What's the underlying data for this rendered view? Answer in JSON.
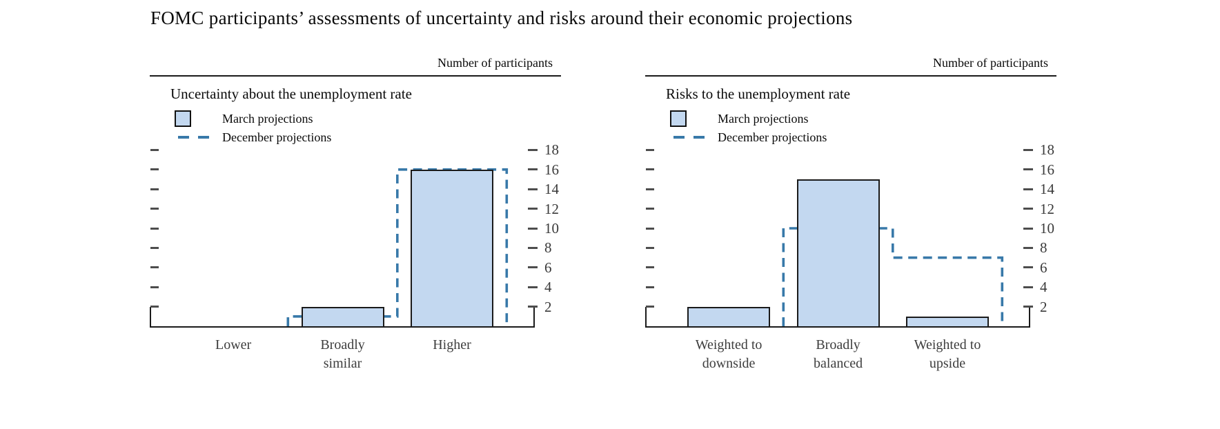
{
  "page_title": "FOMC participants’ assessments of uncertainty and risks around their economic projections",
  "colors": {
    "bar_fill": "#c3d8f0",
    "bar_border": "#1a1a1a",
    "dashed_line": "#3879a9",
    "axis": "#1a1a1a",
    "tick_mark": "#4d4d4d",
    "tick_label_text": "#3a3a3a",
    "category_label_text": "#3d3d3d"
  },
  "legend": {
    "march_label": "March projections",
    "december_label": "December projections"
  },
  "chart_data": [
    {
      "type": "bar",
      "title": "Uncertainty about the unemployment rate",
      "ylabel": "Number of participants",
      "categories": [
        "Lower",
        "Broadly similar",
        "Higher"
      ],
      "categories_wrapped": [
        [
          "Lower"
        ],
        [
          "Broadly",
          "similar"
        ],
        [
          "Higher"
        ]
      ],
      "series": [
        {
          "name": "March projections",
          "style": "filled-bar",
          "values": [
            0,
            2,
            16
          ]
        },
        {
          "name": "December projections",
          "style": "dashed-outline",
          "values": [
            0,
            1,
            16
          ]
        }
      ],
      "ylim": [
        0,
        20
      ],
      "yticks": [
        2,
        4,
        6,
        8,
        10,
        12,
        14,
        16,
        18
      ],
      "grid": false,
      "legend_position": "top-left"
    },
    {
      "type": "bar",
      "title": "Risks to the unemployment rate",
      "ylabel": "Number of participants",
      "categories": [
        "Weighted to downside",
        "Broadly balanced",
        "Weighted to upside"
      ],
      "categories_wrapped": [
        [
          "Weighted to",
          "downside"
        ],
        [
          "Broadly",
          "balanced"
        ],
        [
          "Weighted to",
          "upside"
        ]
      ],
      "series": [
        {
          "name": "March projections",
          "style": "filled-bar",
          "values": [
            2,
            15,
            1
          ]
        },
        {
          "name": "December projections",
          "style": "dashed-outline",
          "values": [
            0,
            10,
            7
          ]
        }
      ],
      "ylim": [
        0,
        20
      ],
      "yticks": [
        2,
        4,
        6,
        8,
        10,
        12,
        14,
        16,
        18
      ],
      "grid": false,
      "legend_position": "top-left"
    }
  ]
}
